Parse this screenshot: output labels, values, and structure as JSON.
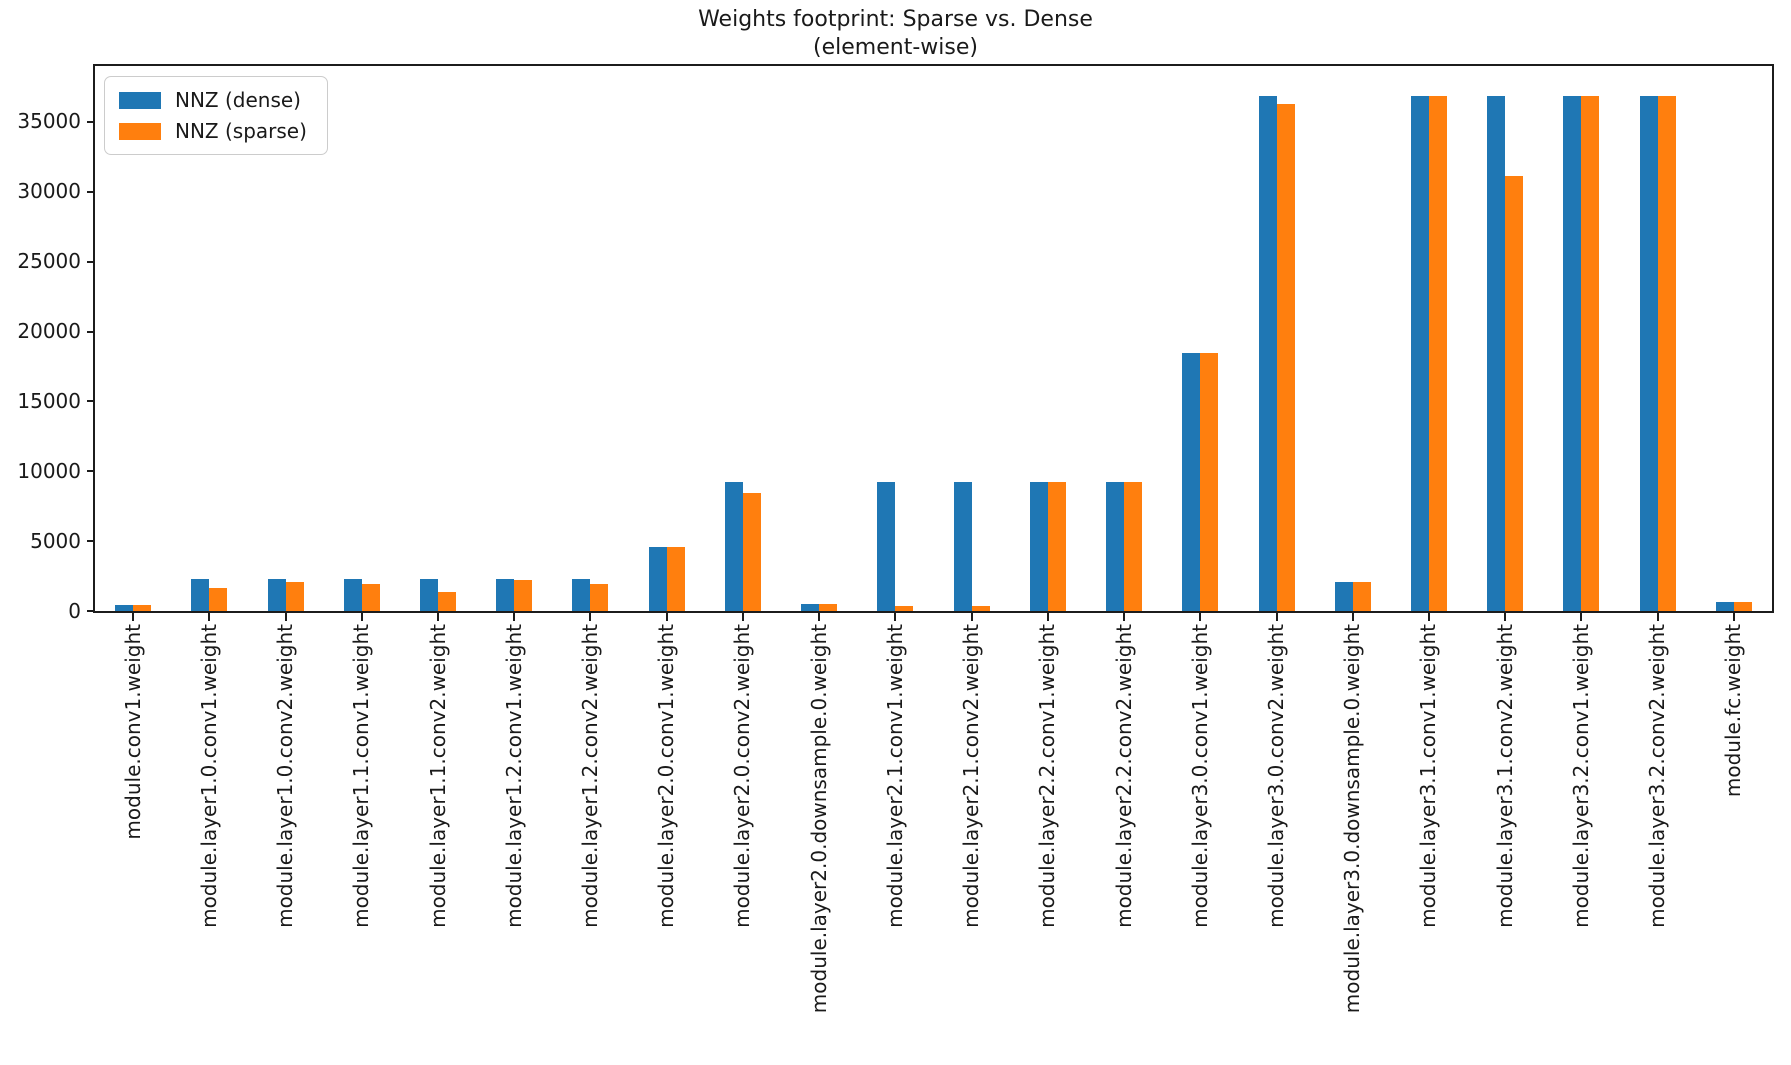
{
  "title": {
    "line1": "Weights footprint: Sparse vs. Dense",
    "line2": "(element-wise)"
  },
  "legend": {
    "items": [
      {
        "label": "NNZ (dense)",
        "color": "#1f77b4"
      },
      {
        "label": "NNZ (sparse)",
        "color": "#ff7f0e"
      }
    ]
  },
  "colors": {
    "dense": "#1f77b4",
    "sparse": "#ff7f0e",
    "spine": "#1c1c1c"
  },
  "chart_data": {
    "type": "bar",
    "title": "Weights footprint: Sparse vs. Dense\n(element-wise)",
    "xlabel": "",
    "ylabel": "",
    "grid": false,
    "legend_position": "upper left",
    "ylim": [
      0,
      39000
    ],
    "yticks": [
      0,
      5000,
      10000,
      15000,
      20000,
      25000,
      30000,
      35000
    ],
    "categories": [
      "module.conv1.weight",
      "module.layer1.0.conv1.weight",
      "module.layer1.0.conv2.weight",
      "module.layer1.1.conv1.weight",
      "module.layer1.1.conv2.weight",
      "module.layer1.2.conv1.weight",
      "module.layer1.2.conv2.weight",
      "module.layer2.0.conv1.weight",
      "module.layer2.0.conv2.weight",
      "module.layer2.0.downsample.0.weight",
      "module.layer2.1.conv1.weight",
      "module.layer2.1.conv2.weight",
      "module.layer2.2.conv1.weight",
      "module.layer2.2.conv2.weight",
      "module.layer3.0.conv1.weight",
      "module.layer3.0.conv2.weight",
      "module.layer3.0.downsample.0.weight",
      "module.layer3.1.conv1.weight",
      "module.layer3.1.conv2.weight",
      "module.layer3.2.conv1.weight",
      "module.layer3.2.conv2.weight",
      "module.fc.weight"
    ],
    "series": [
      {
        "name": "NNZ (dense)",
        "color": "#1f77b4",
        "values": [
          432,
          2304,
          2304,
          2304,
          2304,
          2304,
          2304,
          4608,
          9216,
          512,
          9216,
          9216,
          9216,
          9216,
          18432,
          36864,
          2048,
          36864,
          36864,
          36864,
          36864,
          640
        ]
      },
      {
        "name": "NNZ (sparse)",
        "color": "#ff7f0e",
        "values": [
          432,
          1630,
          2040,
          1940,
          1370,
          2250,
          1940,
          4608,
          8450,
          512,
          350,
          350,
          9216,
          9216,
          18432,
          36290,
          2048,
          36864,
          31100,
          36864,
          36864,
          640
        ]
      }
    ]
  }
}
